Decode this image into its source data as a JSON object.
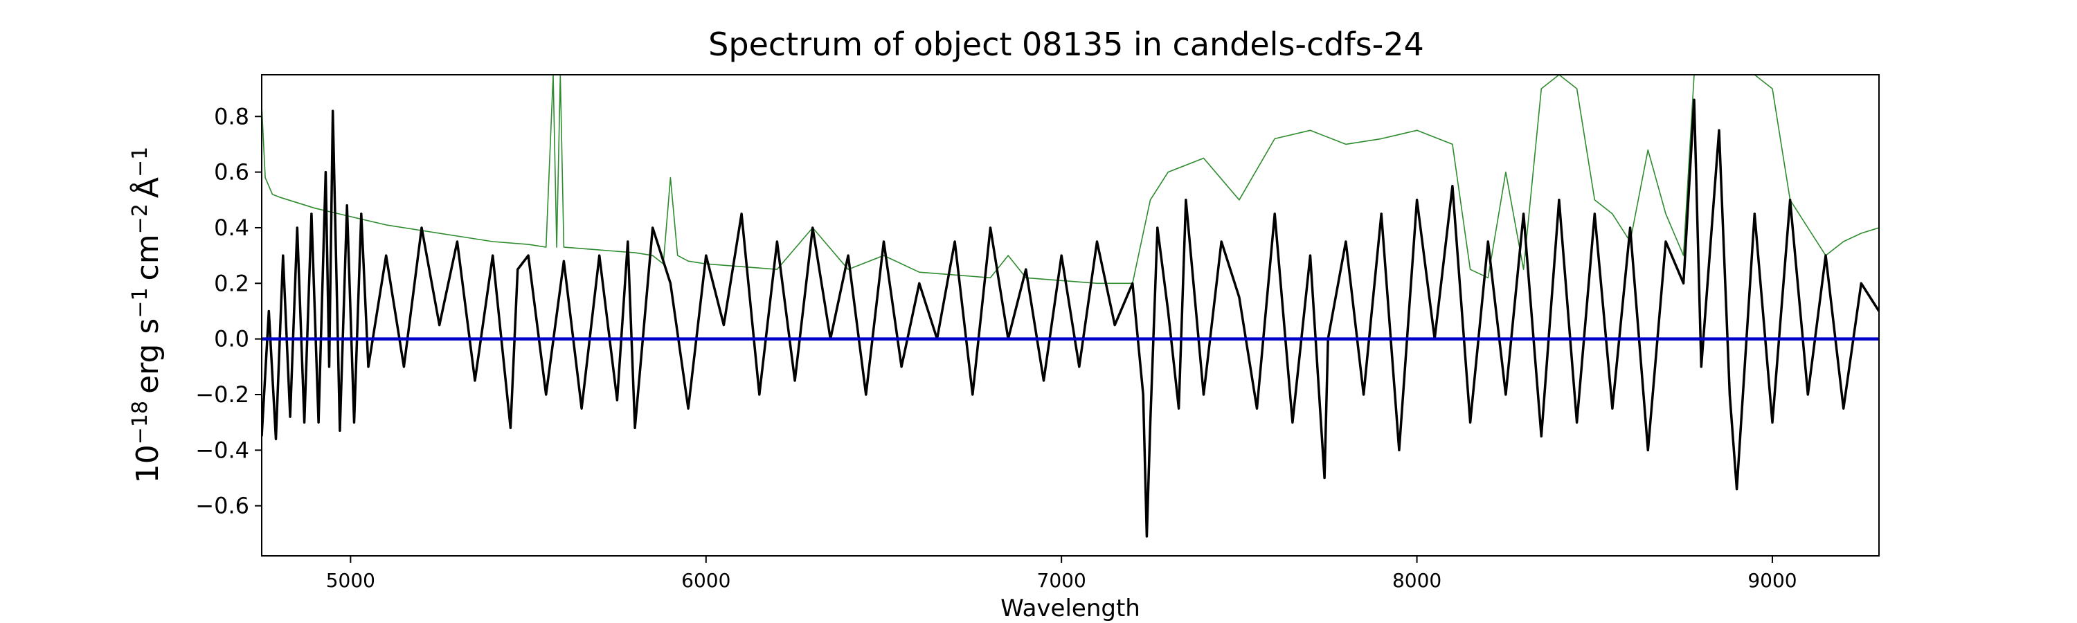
{
  "chart_data": {
    "type": "line",
    "title": "Spectrum of object 08135 in candels-cdfs-24",
    "xlabel": "Wavelength",
    "ylabel": {
      "base": "10",
      "base_exp": "−18",
      "erg": "erg s",
      "erg_exp": "−1",
      "cm": "cm",
      "cm_exp": "−2",
      "ang": "Å",
      "ang_exp": "−1"
    },
    "xlim": [
      4750,
      9300
    ],
    "ylim": [
      -0.78,
      0.95
    ],
    "xticks": [
      5000,
      6000,
      7000,
      8000,
      9000
    ],
    "xtick_labels": [
      "5000",
      "6000",
      "7000",
      "8000",
      "9000"
    ],
    "yticks": [
      -0.6,
      -0.4,
      -0.2,
      0.0,
      0.2,
      0.4,
      0.6,
      0.8
    ],
    "ytick_labels": [
      "−0.6",
      "−0.4",
      "−0.2",
      "0.0",
      "0.2",
      "0.4",
      "0.6",
      "0.8"
    ],
    "grid": false,
    "colors": {
      "flux": "#000000",
      "error": "#2e8b2e",
      "zero": "#0000cc"
    },
    "series": [
      {
        "role": "flux",
        "x": [
          4750,
          4770,
          4790,
          4810,
          4830,
          4850,
          4870,
          4890,
          4910,
          4930,
          4940,
          4950,
          4970,
          4990,
          5010,
          5030,
          5050,
          5100,
          5150,
          5200,
          5250,
          5300,
          5350,
          5400,
          5450,
          5470,
          5500,
          5550,
          5600,
          5650,
          5700,
          5750,
          5780,
          5800,
          5850,
          5900,
          5950,
          6000,
          6050,
          6100,
          6150,
          6200,
          6250,
          6300,
          6350,
          6400,
          6450,
          6500,
          6550,
          6600,
          6650,
          6700,
          6750,
          6800,
          6850,
          6900,
          6950,
          7000,
          7050,
          7100,
          7150,
          7200,
          7230,
          7240,
          7250,
          7270,
          7300,
          7330,
          7350,
          7400,
          7450,
          7500,
          7550,
          7600,
          7650,
          7700,
          7740,
          7750,
          7800,
          7850,
          7900,
          7950,
          8000,
          8050,
          8100,
          8150,
          8200,
          8250,
          8300,
          8350,
          8400,
          8450,
          8500,
          8550,
          8600,
          8650,
          8700,
          8750,
          8780,
          8800,
          8850,
          8880,
          8900,
          8950,
          9000,
          9050,
          9100,
          9150,
          9200,
          9250,
          9300
        ],
        "y": [
          -0.35,
          0.1,
          -0.36,
          0.3,
          -0.28,
          0.4,
          -0.3,
          0.45,
          -0.3,
          0.6,
          -0.1,
          0.82,
          -0.33,
          0.48,
          -0.3,
          0.45,
          -0.1,
          0.3,
          -0.1,
          0.4,
          0.05,
          0.35,
          -0.15,
          0.3,
          -0.32,
          0.25,
          0.3,
          -0.2,
          0.28,
          -0.25,
          0.3,
          -0.22,
          0.35,
          -0.32,
          0.4,
          0.2,
          -0.25,
          0.3,
          0.05,
          0.45,
          -0.2,
          0.35,
          -0.15,
          0.4,
          0.0,
          0.3,
          -0.2,
          0.35,
          -0.1,
          0.2,
          0.0,
          0.35,
          -0.2,
          0.4,
          0.0,
          0.25,
          -0.15,
          0.3,
          -0.1,
          0.35,
          0.05,
          0.2,
          -0.2,
          -0.71,
          -0.3,
          0.4,
          0.1,
          -0.25,
          0.5,
          -0.2,
          0.35,
          0.15,
          -0.25,
          0.45,
          -0.3,
          0.3,
          -0.5,
          0.0,
          0.35,
          -0.2,
          0.45,
          -0.4,
          0.5,
          0.0,
          0.55,
          -0.3,
          0.35,
          -0.2,
          0.45,
          -0.35,
          0.5,
          -0.3,
          0.45,
          -0.25,
          0.4,
          -0.4,
          0.35,
          0.2,
          0.86,
          -0.1,
          0.75,
          -0.2,
          -0.54,
          0.45,
          -0.3,
          0.5,
          -0.2,
          0.3,
          -0.25,
          0.2,
          0.1
        ]
      },
      {
        "role": "error",
        "x": [
          4750,
          4760,
          4780,
          4800,
          4900,
          5000,
          5100,
          5200,
          5300,
          5400,
          5500,
          5550,
          5570,
          5580,
          5590,
          5600,
          5700,
          5800,
          5850,
          5880,
          5900,
          5920,
          5950,
          6000,
          6100,
          6200,
          6300,
          6400,
          6500,
          6600,
          6700,
          6800,
          6850,
          6900,
          7000,
          7100,
          7200,
          7250,
          7300,
          7400,
          7500,
          7600,
          7700,
          7800,
          7900,
          8000,
          8100,
          8150,
          8200,
          8250,
          8300,
          8350,
          8400,
          8450,
          8500,
          8550,
          8600,
          8650,
          8700,
          8750,
          8780,
          8800,
          8850,
          8900,
          8950,
          9000,
          9050,
          9100,
          9150,
          9200,
          9250,
          9300
        ],
        "y": [
          0.84,
          0.58,
          0.52,
          0.51,
          0.47,
          0.44,
          0.41,
          0.39,
          0.37,
          0.35,
          0.34,
          0.33,
          0.95,
          0.33,
          0.95,
          0.33,
          0.32,
          0.31,
          0.3,
          0.27,
          0.58,
          0.3,
          0.28,
          0.27,
          0.26,
          0.25,
          0.4,
          0.25,
          0.3,
          0.24,
          0.23,
          0.22,
          0.3,
          0.22,
          0.21,
          0.2,
          0.2,
          0.5,
          0.6,
          0.65,
          0.5,
          0.72,
          0.75,
          0.7,
          0.72,
          0.75,
          0.7,
          0.25,
          0.22,
          0.6,
          0.25,
          0.9,
          0.95,
          0.9,
          0.5,
          0.45,
          0.35,
          0.68,
          0.45,
          0.3,
          0.95,
          0.95,
          0.95,
          0.95,
          0.95,
          0.9,
          0.5,
          0.4,
          0.3,
          0.35,
          0.38,
          0.4
        ]
      },
      {
        "role": "zero",
        "x": [
          4750,
          9300
        ],
        "y": [
          0.0,
          0.0
        ]
      }
    ]
  }
}
